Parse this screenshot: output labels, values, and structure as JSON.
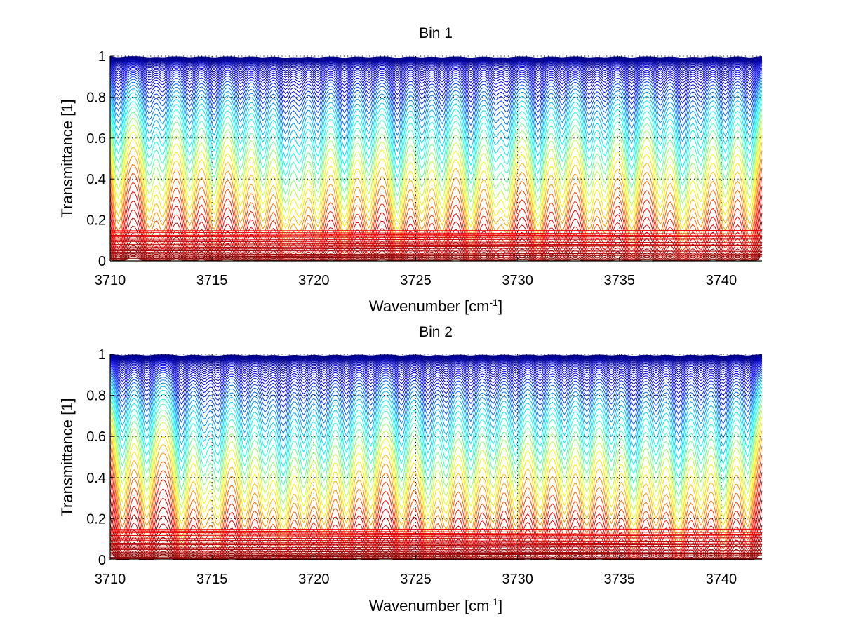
{
  "chart_data": [
    {
      "type": "line",
      "title": "Bin 1",
      "xlabel": "Wavenumber [cm^-1]",
      "ylabel": "Transmittance [1]",
      "xlim": [
        3710,
        3742
      ],
      "ylim": [
        0,
        1
      ],
      "xticks": [
        3710,
        3715,
        3720,
        3725,
        3730,
        3735,
        3740
      ],
      "yticks": [
        0,
        0.2,
        0.4,
        0.6,
        0.8,
        1
      ],
      "grid": true,
      "colormap": "jet (red = low transmittance, blue = ~1)",
      "series_count": 60,
      "absorption_line_centers": [
        3710.4,
        3711.9,
        3712.6,
        3713.9,
        3715.1,
        3716.4,
        3717.5,
        3718.6,
        3719.3,
        3720.2,
        3721.5,
        3722.7,
        3724.1,
        3725.3,
        3726.3,
        3727.7,
        3728.9,
        3729.5,
        3731.0,
        3732.2,
        3733.5,
        3734.3,
        3735.6,
        3737.0,
        3738.1,
        3739.0,
        3740.2,
        3741.4
      ],
      "line_strengths": [
        0.6,
        0.55,
        0.5,
        0.55,
        0.6,
        0.5,
        0.55,
        0.7,
        0.5,
        0.6,
        0.75,
        0.55,
        0.8,
        0.55,
        0.6,
        0.75,
        0.5,
        0.55,
        0.75,
        0.5,
        0.55,
        0.5,
        0.7,
        0.5,
        0.75,
        0.5,
        0.6,
        0.65
      ]
    },
    {
      "type": "line",
      "title": "Bin 2",
      "xlabel": "Wavenumber [cm^-1]",
      "ylabel": "Transmittance [1]",
      "xlim": [
        3710,
        3742
      ],
      "ylim": [
        0,
        1
      ],
      "xticks": [
        3710,
        3715,
        3720,
        3725,
        3730,
        3735,
        3740
      ],
      "yticks": [
        0,
        0.2,
        0.4,
        0.6,
        0.8,
        1
      ],
      "grid": true,
      "colormap": "jet (red = low transmittance, blue = ~1)",
      "series_count": 60,
      "absorption_line_centers": [
        3710.6,
        3711.8,
        3713.5,
        3714.6,
        3715.3,
        3716.6,
        3717.6,
        3718.5,
        3719.5,
        3720.5,
        3721.6,
        3722.8,
        3724.3,
        3725.6,
        3726.5,
        3727.7,
        3728.8,
        3729.9,
        3731.1,
        3732.3,
        3733.4,
        3734.6,
        3735.7,
        3736.8,
        3737.9,
        3739.0,
        3740.1,
        3741.3
      ],
      "line_strengths": [
        0.55,
        0.6,
        0.75,
        0.5,
        0.6,
        0.55,
        0.5,
        0.75,
        0.55,
        0.6,
        0.6,
        0.55,
        0.65,
        0.7,
        0.55,
        0.6,
        0.5,
        0.55,
        0.55,
        0.5,
        0.55,
        0.5,
        0.75,
        0.5,
        0.8,
        0.5,
        0.75,
        0.6
      ]
    }
  ]
}
